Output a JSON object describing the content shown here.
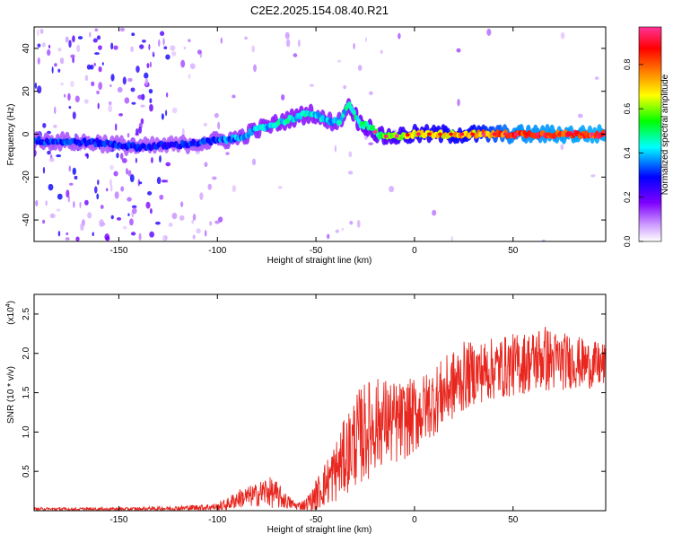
{
  "title": "C2E2.2025.154.08.40.R21",
  "colors": {
    "snr_line": "#e8261e",
    "axis": "#000000",
    "background": "#ffffff"
  },
  "chart_data": [
    {
      "type": "heatmap",
      "name": "spectrogram",
      "xlabel": "Height of straight line (km)",
      "ylabel": "Frequency (Hz)",
      "xlim": [
        -193,
        97
      ],
      "ylim": [
        -50,
        50
      ],
      "x_ticks": [
        -150,
        -100,
        -50,
        0,
        50
      ],
      "y_ticks": [
        -40,
        -20,
        0,
        20,
        40
      ],
      "colorbar": {
        "label": "Normalized spectral amplitude",
        "range": [
          0,
          0.97
        ],
        "ticks": [
          "0.0",
          "0.2",
          "0.4",
          "0.6",
          "0.8"
        ],
        "tick_values": [
          0.0,
          0.2,
          0.4,
          0.6,
          0.8
        ],
        "colormap": [
          "#ffffff",
          "#cc99ff",
          "#7f00ff",
          "#0000ff",
          "#00ffff",
          "#00ff00",
          "#ffff00",
          "#ff8000",
          "#ff0000",
          "#ff3399"
        ]
      },
      "ridge": {
        "description_points_km_hz": [
          [
            -193,
            -3
          ],
          [
            -160,
            -4
          ],
          [
            -140,
            -6
          ],
          [
            -120,
            -5
          ],
          [
            -100,
            -3
          ],
          [
            -90,
            -2
          ],
          [
            -80,
            2
          ],
          [
            -70,
            5
          ],
          [
            -60,
            8
          ],
          [
            -52,
            10
          ],
          [
            -45,
            6
          ],
          [
            -38,
            6
          ],
          [
            -33,
            14
          ],
          [
            -28,
            5
          ],
          [
            -22,
            3
          ],
          [
            -18,
            -1
          ],
          [
            -10,
            -1
          ],
          [
            0,
            0
          ],
          [
            20,
            0
          ],
          [
            50,
            0
          ],
          [
            97,
            0
          ]
        ],
        "amplitude_points_km": [
          [
            -193,
            0.35
          ],
          [
            -150,
            0.33
          ],
          [
            -120,
            0.32
          ],
          [
            -100,
            0.36
          ],
          [
            -80,
            0.42
          ],
          [
            -60,
            0.45
          ],
          [
            -40,
            0.42
          ],
          [
            -25,
            0.5
          ],
          [
            0,
            0.65
          ],
          [
            30,
            0.72
          ],
          [
            50,
            0.85
          ],
          [
            97,
            0.88
          ]
        ]
      }
    },
    {
      "type": "line",
      "name": "snr",
      "xlabel": "Height of straight line (km)",
      "ylabel": "SNR (10 * v/v)",
      "scale_label": "(x10",
      "scale_exponent": "4",
      "scale_close": ")",
      "xlim": [
        -193,
        97
      ],
      "ylim": [
        0,
        2.75
      ],
      "x_ticks": [
        -150,
        -100,
        -50,
        0,
        50
      ],
      "y_ticks": [
        0.5,
        1.0,
        1.5,
        2.0,
        2.5
      ],
      "y_tick_labels": [
        "0.5",
        "1.0",
        "1.5",
        "2.0",
        "2.5"
      ],
      "envelope": {
        "x": [
          -193,
          -150,
          -120,
          -110,
          -100,
          -95,
          -90,
          -80,
          -75,
          -70,
          -65,
          -60,
          -55,
          -50,
          -45,
          -40,
          -35,
          -30,
          -25,
          -20,
          -15,
          -10,
          -5,
          0,
          5,
          10,
          15,
          20,
          25,
          30,
          40,
          50,
          60,
          65,
          70,
          80,
          90,
          97
        ],
        "mean": [
          0.02,
          0.02,
          0.03,
          0.04,
          0.05,
          0.08,
          0.15,
          0.2,
          0.25,
          0.2,
          0.12,
          0.06,
          0.08,
          0.2,
          0.35,
          0.5,
          0.7,
          0.9,
          1.0,
          1.1,
          1.15,
          1.1,
          1.15,
          1.2,
          1.3,
          1.4,
          1.5,
          1.6,
          1.7,
          1.75,
          1.8,
          1.85,
          1.9,
          1.95,
          1.9,
          1.9,
          1.85,
          1.85
        ],
        "spread": [
          0.02,
          0.02,
          0.03,
          0.04,
          0.05,
          0.08,
          0.12,
          0.15,
          0.2,
          0.18,
          0.1,
          0.05,
          0.08,
          0.2,
          0.3,
          0.4,
          0.5,
          0.6,
          0.65,
          0.6,
          0.55,
          0.55,
          0.5,
          0.5,
          0.45,
          0.45,
          0.45,
          0.45,
          0.45,
          0.4,
          0.4,
          0.4,
          0.4,
          0.45,
          0.4,
          0.35,
          0.3,
          0.3
        ]
      }
    }
  ]
}
